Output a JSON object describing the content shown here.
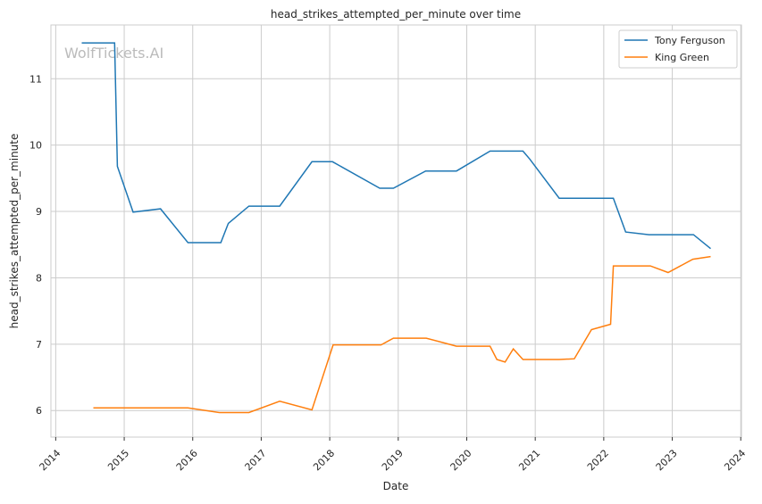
{
  "chart_data": {
    "type": "line",
    "title": "head_strikes_attempted_per_minute over time",
    "xlabel": "Date",
    "ylabel": "head_strikes_attempted_per_minute",
    "xlim": [
      2013.93,
      2024.01
    ],
    "ylim": [
      5.6,
      11.81
    ],
    "xticks": [
      "2014",
      "2015",
      "2016",
      "2017",
      "2018",
      "2019",
      "2020",
      "2021",
      "2022",
      "2023",
      "2024"
    ],
    "yticks": [
      6,
      7,
      8,
      9,
      10,
      11
    ],
    "grid": true,
    "legend_placement": "top-right",
    "watermark": "WolfTickets.AI",
    "series": [
      {
        "name": "Tony Ferguson",
        "color": "#1f77b4",
        "x": [
          2014.38,
          2014.86,
          2014.9,
          2015.13,
          2015.53,
          2015.93,
          2016.41,
          2016.52,
          2016.82,
          2017.27,
          2017.74,
          2018.04,
          2018.73,
          2018.93,
          2019.4,
          2019.85,
          2020.34,
          2020.82,
          2020.92,
          2021.35,
          2022.14,
          2022.32,
          2022.66,
          2023.31,
          2023.56
        ],
        "y": [
          11.54,
          11.54,
          9.68,
          8.99,
          9.04,
          8.53,
          8.53,
          8.82,
          9.08,
          9.08,
          9.75,
          9.75,
          9.35,
          9.35,
          9.61,
          9.61,
          9.91,
          9.91,
          9.79,
          9.2,
          9.2,
          8.69,
          8.65,
          8.65,
          8.44
        ]
      },
      {
        "name": "King Green",
        "color": "#ff7f0e",
        "x": [
          2014.55,
          2015.93,
          2016.39,
          2016.82,
          2017.27,
          2017.74,
          2018.05,
          2018.75,
          2018.93,
          2019.41,
          2019.85,
          2020.34,
          2020.44,
          2020.56,
          2020.68,
          2020.82,
          2021.35,
          2021.57,
          2021.82,
          2022.1,
          2022.14,
          2022.68,
          2022.94,
          2023.3,
          2023.56
        ],
        "y": [
          6.04,
          6.04,
          5.97,
          5.97,
          6.14,
          6.01,
          6.99,
          6.99,
          7.09,
          7.09,
          6.97,
          6.97,
          6.77,
          6.73,
          6.93,
          6.77,
          6.77,
          6.78,
          7.22,
          7.3,
          8.18,
          8.18,
          8.08,
          8.28,
          8.32
        ]
      }
    ]
  }
}
